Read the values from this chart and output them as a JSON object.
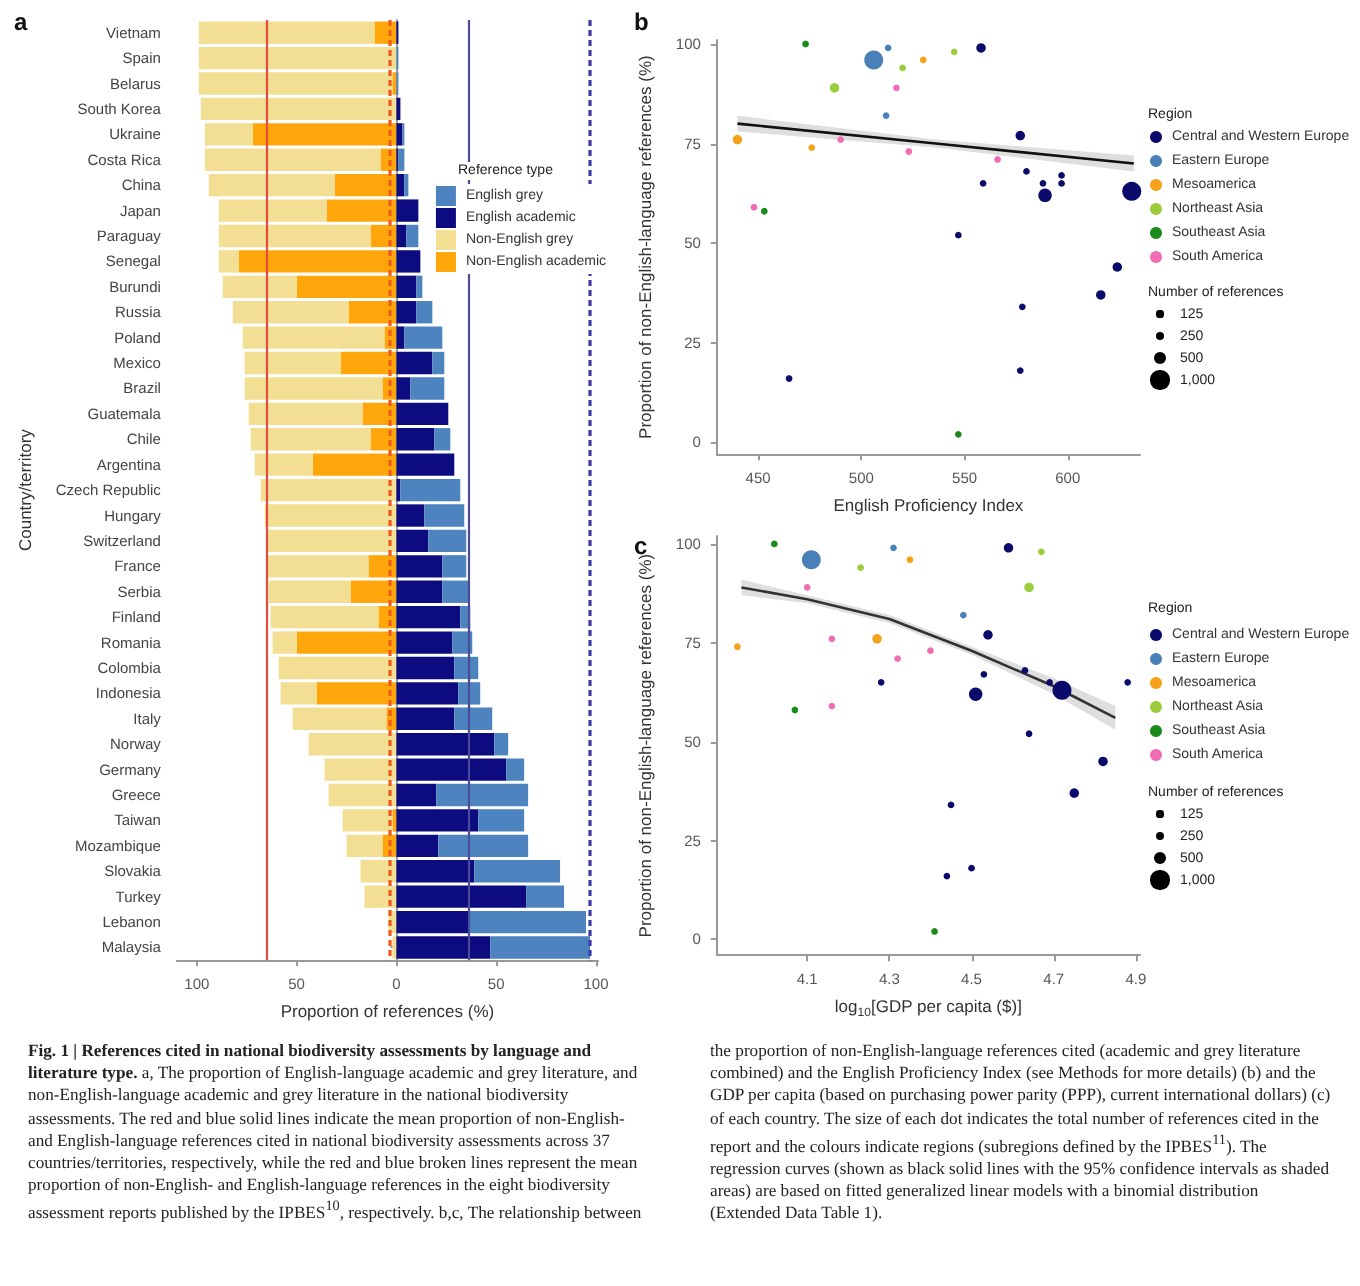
{
  "chart_data": [
    {
      "type": "bar",
      "title": "a",
      "orientation": "horizontal",
      "stacked": true,
      "xlabel": "Proportion of references (%)",
      "ylabel": "Country/territory",
      "legend_title": "Reference type",
      "legend": "right",
      "categories": [
        "Vietnam",
        "Spain",
        "Belarus",
        "South Korea",
        "Ukraine",
        "Costa Rica",
        "China",
        "Japan",
        "Paraguay",
        "Senegal",
        "Burundi",
        "Russia",
        "Poland",
        "Mexico",
        "Brazil",
        "Guatemala",
        "Chile",
        "Argentina",
        "Czech Republic",
        "Hungary",
        "Switzerland",
        "France",
        "Serbia",
        "Finland",
        "Romania",
        "Colombia",
        "Indonesia",
        "Italy",
        "Norway",
        "Germany",
        "Greece",
        "Taiwan",
        "Mozambique",
        "Slovakia",
        "Turkey",
        "Lebanon",
        "Malaysia"
      ],
      "xlim": [
        -110,
        101
      ],
      "xticks": [
        {
          "value": -100,
          "label": "100"
        },
        {
          "value": -50,
          "label": "50"
        },
        0,
        50,
        100
      ],
      "series": [
        {
          "name": "Non-English academic",
          "color": "#ffa60a",
          "values": [
            -11,
            null,
            -2,
            null,
            -72,
            -8,
            -31,
            -35,
            -13,
            -79,
            -50,
            -24,
            -6,
            -28,
            -7,
            -17,
            -13,
            -42,
            null,
            null,
            null,
            -14,
            -23,
            -9,
            -50,
            null,
            -40,
            -5,
            null,
            null,
            null,
            -2,
            -7,
            null,
            null,
            null,
            null
          ]
        },
        {
          "name": "Non-English grey",
          "color": "#f3df94",
          "values": [
            -88,
            -99,
            -97,
            -98,
            -24,
            -88,
            -63,
            -54,
            -76,
            -10,
            -37,
            -58,
            -71,
            -48,
            -69,
            -57,
            -60,
            -29,
            -68,
            -66,
            -65,
            -51,
            -41,
            -54,
            -12,
            -59,
            -18,
            -47,
            -44,
            -36,
            -34,
            -25,
            -18,
            -18,
            -16,
            -4,
            -2
          ]
        },
        {
          "name": "English academic",
          "color": "#0c0c80",
          "values": [
            1,
            null,
            null,
            2,
            3,
            1,
            4,
            11,
            5,
            12,
            10,
            10,
            4,
            18,
            7,
            26,
            19,
            29,
            2,
            14,
            16,
            23,
            23,
            32,
            28,
            29,
            31,
            29,
            49,
            55,
            20,
            41,
            21,
            39,
            65,
            36,
            47
          ]
        },
        {
          "name": "English grey",
          "color": "#4d84bf",
          "values": [
            null,
            1,
            1,
            null,
            1,
            3,
            2,
            null,
            6,
            null,
            3,
            8,
            19,
            6,
            17,
            null,
            8,
            null,
            30,
            20,
            19,
            12,
            13,
            5,
            10,
            12,
            11,
            19,
            7,
            9,
            46,
            23,
            45,
            43,
            19,
            59,
            50
          ]
        }
      ],
      "ref_lines": [
        {
          "axis": "x",
          "value": -65,
          "color": "#e84a3c",
          "line_style": "solid"
        },
        {
          "axis": "x",
          "value": 36,
          "color": "#4b4b9a",
          "line_style": "solid"
        },
        {
          "axis": "x",
          "value": -3,
          "color": "#f05a1e",
          "line_style": "dashed"
        },
        {
          "axis": "x",
          "value": 97,
          "color": "#3a3aa8",
          "line_style": "dashed"
        }
      ],
      "annotations": [
        "Fig. 1 | References cited in national biodiversity assessments by language and literature type.",
        "a, The proportion of English-language academic and grey literature, and non-English-language academic and grey literature in the national biodiversity assessments. The red and blue solid lines indicate the mean proportion of non-English- and English-language references cited in national biodiversity assessments across 37 countries/territories, respectively, while the red and blue broken lines represent the mean proportion of non-English- and English-language references in the eight biodiversity assessment reports published by the IPBES$^{10}$, respectively. b,c, The relationship between the proportion of non-English-language references cited (academic and grey literature combined) and the English Proficiency Index (see Methods for more details) (b) and the GDP per capita (based on purchasing power parity (PPP), current international dollars) (c) of each country. The size of each dot indicates the total number of references cited in the report and the colours indicate regions (subregions defined by the IPBES$^{11}$). The regression curves (shown as black solid lines with the 95% confidence intervals as shaded areas) are based on fitted generalized linear models with a binomial distribution (Extended Data Table 1)."
      ]
    },
    {
      "type": "bubble",
      "title": "b",
      "xlabel": "English Proficiency Index",
      "ylabel": "Proportion of non-English-language references (%)",
      "legend_title": "Region",
      "legend": "right",
      "xlim": [
        430,
        635
      ],
      "xticks": [
        450,
        500,
        550,
        600
      ],
      "ylim": [
        -3,
        101
      ],
      "yticks": [
        0,
        25,
        50,
        75,
        100
      ],
      "size_legend": [
        125,
        250,
        500,
        {
          "value": 1000,
          "label": "1,000"
        }
      ],
      "annotations": [
        "Number of references"
      ],
      "series": [
        {
          "type": "line",
          "color": "#111111",
          "x": [
            440,
            536,
            632
          ],
          "values": [
            80,
            75,
            70
          ],
          "lower": [
            78,
            74,
            68
          ],
          "upper": [
            82,
            76,
            72
          ]
        },
        {
          "name": "Central and Western Europe",
          "color": "#0a0a6b",
          "x": [
            558,
            577,
            580,
            559,
            588,
            597,
            597,
            589,
            631,
            547,
            624,
            616,
            578,
            577,
            465
          ],
          "values": [
            99,
            77,
            68,
            65,
            65,
            65,
            67,
            62,
            63,
            52,
            44,
            37,
            34,
            18,
            16
          ],
          "sizes": [
            250,
            250,
            125,
            125,
            125,
            125,
            125,
            500,
            1000,
            125,
            250,
            250,
            125,
            125,
            125
          ]
        },
        {
          "name": "Eastern Europe",
          "color": "#4a80b8",
          "x": [
            506,
            513,
            512
          ],
          "values": [
            96,
            99,
            82
          ],
          "sizes": [
            1000,
            125,
            125
          ]
        },
        {
          "name": "Mesoamerica",
          "color": "#f5a21a",
          "x": [
            440,
            530,
            476
          ],
          "values": [
            76,
            96,
            74
          ],
          "sizes": [
            250,
            125,
            125
          ]
        },
        {
          "name": "Northeast Asia",
          "color": "#9ccc3c",
          "x": [
            487,
            520,
            545
          ],
          "values": [
            89,
            94,
            98
          ],
          "sizes": [
            250,
            125,
            125
          ]
        },
        {
          "name": "Southeast Asia",
          "color": "#1a8a1a",
          "x": [
            473,
            453,
            547
          ],
          "values": [
            100,
            58,
            2
          ],
          "sizes": [
            125,
            125,
            125
          ]
        },
        {
          "name": "South America",
          "color": "#f06db5",
          "x": [
            517,
            490,
            523,
            566,
            448
          ],
          "values": [
            89,
            76,
            73,
            71,
            59
          ],
          "sizes": [
            125,
            125,
            125,
            125,
            125
          ]
        }
      ]
    },
    {
      "type": "bubble",
      "title": "c",
      "xlabel": "log$_{10}$[GDP per capita ($)]",
      "ylabel": "Proportion of non-English-language references (%)",
      "legend_title": "Region",
      "legend": "right",
      "xlim": [
        3.88,
        4.91
      ],
      "xticks": [
        4.1,
        4.3,
        4.5,
        4.7,
        4.9
      ],
      "ylim": [
        -4,
        102
      ],
      "yticks": [
        0,
        25,
        50,
        75,
        100
      ],
      "size_legend": [
        125,
        250,
        500,
        {
          "value": 1000,
          "label": "1,000"
        }
      ],
      "annotations": [
        "Number of references"
      ],
      "series": [
        {
          "type": "line",
          "color": "#333333",
          "x": [
            3.94,
            4.1,
            4.3,
            4.5,
            4.7,
            4.85
          ],
          "values": [
            89,
            86,
            81,
            73,
            64,
            56
          ],
          "lower": [
            87,
            85,
            80,
            72,
            62,
            53
          ],
          "upper": [
            91,
            87,
            82,
            74,
            66,
            59
          ]
        },
        {
          "name": "Central and Western Europe",
          "color": "#0a0a6b",
          "x": [
            4.59,
            4.54,
            4.63,
            4.28,
            4.69,
            4.88,
            4.53,
            4.51,
            4.72,
            4.64,
            4.82,
            4.75,
            4.45,
            4.5,
            4.44
          ],
          "values": [
            99,
            77,
            68,
            65,
            65,
            65,
            67,
            62,
            63,
            52,
            45,
            37,
            34,
            18,
            16
          ],
          "sizes": [
            250,
            250,
            125,
            125,
            125,
            125,
            125,
            500,
            1000,
            125,
            250,
            250,
            125,
            125,
            125
          ]
        },
        {
          "name": "Eastern Europe",
          "color": "#4a80b8",
          "x": [
            4.11,
            4.31,
            4.48
          ],
          "values": [
            96,
            99,
            82
          ],
          "sizes": [
            1000,
            125,
            125
          ]
        },
        {
          "name": "Mesoamerica",
          "color": "#f5a21a",
          "x": [
            4.27,
            4.35,
            3.93
          ],
          "values": [
            76,
            96,
            74
          ],
          "sizes": [
            250,
            125,
            125
          ]
        },
        {
          "name": "Northeast Asia",
          "color": "#9ccc3c",
          "x": [
            4.64,
            4.23,
            4.67
          ],
          "values": [
            89,
            94,
            98
          ],
          "sizes": [
            250,
            125,
            125
          ]
        },
        {
          "name": "Southeast Asia",
          "color": "#1a8a1a",
          "x": [
            4.02,
            4.07,
            4.41
          ],
          "values": [
            100,
            58,
            2
          ],
          "sizes": [
            125,
            125,
            125
          ]
        },
        {
          "name": "South America",
          "color": "#f06db5",
          "x": [
            4.1,
            4.16,
            4.32,
            4.4,
            4.16
          ],
          "values": [
            89,
            76,
            71,
            73,
            59
          ],
          "sizes": [
            125,
            125,
            125,
            125,
            125
          ]
        }
      ]
    }
  ]
}
